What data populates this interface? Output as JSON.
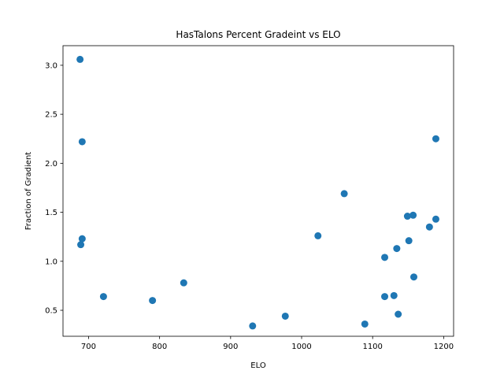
{
  "chart_data": {
    "type": "scatter",
    "title": "HasTalons Percent Gradeint vs ELO",
    "xlabel": "ELO",
    "ylabel": "Fraction of Gradient",
    "xlim": [
      664,
      1214
    ],
    "ylim": [
      0.235,
      3.2
    ],
    "xticks": [
      700,
      800,
      900,
      1000,
      1100,
      1200
    ],
    "yticks": [
      0.5,
      1.0,
      1.5,
      2.0,
      2.5,
      3.0
    ],
    "xtick_labels": [
      "700",
      "800",
      "900",
      "1000",
      "1100",
      "1200"
    ],
    "ytick_labels": [
      "0.5",
      "1.0",
      "1.5",
      "2.0",
      "2.5",
      "3.0"
    ],
    "grid": false,
    "marker_color": "#1f77b4",
    "points": [
      {
        "x": 688,
        "y": 3.06
      },
      {
        "x": 691,
        "y": 2.22
      },
      {
        "x": 691,
        "y": 1.23
      },
      {
        "x": 689,
        "y": 1.17
      },
      {
        "x": 721,
        "y": 0.64
      },
      {
        "x": 790,
        "y": 0.6
      },
      {
        "x": 834,
        "y": 0.78
      },
      {
        "x": 931,
        "y": 0.34
      },
      {
        "x": 977,
        "y": 0.44
      },
      {
        "x": 1023,
        "y": 1.26
      },
      {
        "x": 1060,
        "y": 1.69
      },
      {
        "x": 1089,
        "y": 0.36
      },
      {
        "x": 1117,
        "y": 1.04
      },
      {
        "x": 1117,
        "y": 0.64
      },
      {
        "x": 1130,
        "y": 0.65
      },
      {
        "x": 1134,
        "y": 1.13
      },
      {
        "x": 1136,
        "y": 0.46
      },
      {
        "x": 1149,
        "y": 1.46
      },
      {
        "x": 1151,
        "y": 1.21
      },
      {
        "x": 1157,
        "y": 1.47
      },
      {
        "x": 1158,
        "y": 0.84
      },
      {
        "x": 1180,
        "y": 1.35
      },
      {
        "x": 1189,
        "y": 2.25
      },
      {
        "x": 1189,
        "y": 1.43
      }
    ]
  }
}
